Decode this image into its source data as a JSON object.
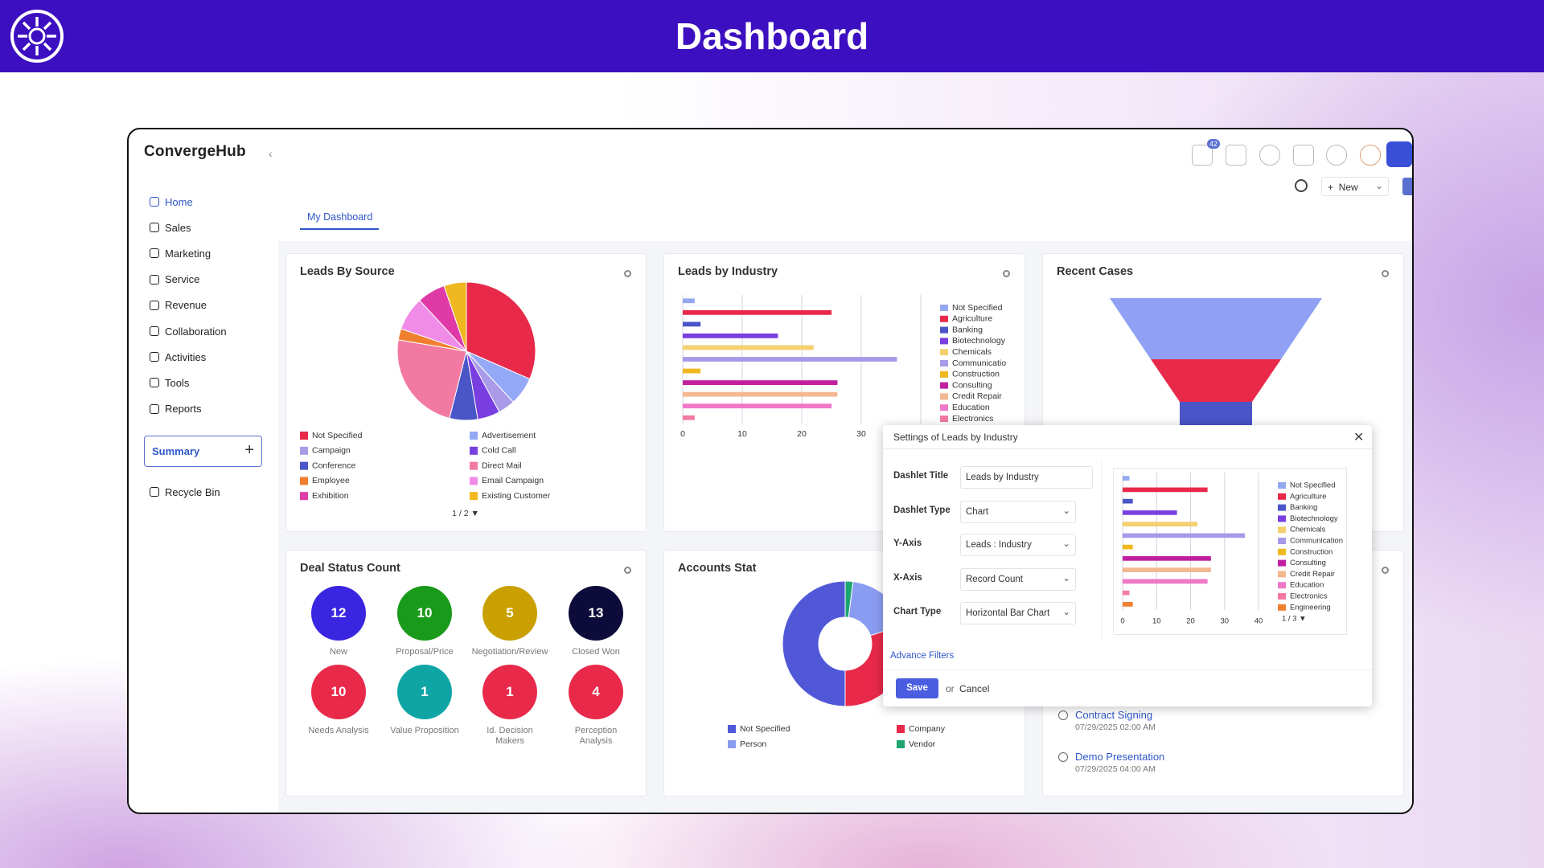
{
  "header": {
    "title": "Dashboard"
  },
  "app": {
    "brand": "ConvergeHub",
    "notification_count": 42,
    "new_button": "New"
  },
  "nav": {
    "items": [
      "Home",
      "Sales",
      "Marketing",
      "Service",
      "Revenue",
      "Collaboration",
      "Activities",
      "Tools",
      "Reports"
    ],
    "summary": "Summary",
    "recycle_bin": "Recycle Bin"
  },
  "tabs": [
    "My Dashboard"
  ],
  "chart_data": [
    {
      "type": "pie",
      "title": "Leads By Source",
      "categories": [
        "Not Specified",
        "Advertisement",
        "Campaign",
        "Cold Call",
        "Conference",
        "Direct Mail",
        "Employee",
        "Email Campaign",
        "Exhibition",
        "Existing Customer"
      ],
      "values": [
        24,
        5,
        3,
        4,
        5,
        18,
        2,
        6,
        5,
        4
      ],
      "colors": [
        "#e8294a",
        "#93a9f7",
        "#a99be8",
        "#7a3fe0",
        "#4a55c8",
        "#f27aa2",
        "#f08030",
        "#f08ce8",
        "#e03aa8",
        "#f0b820"
      ],
      "pagination": "1 / 2 ▼"
    },
    {
      "type": "bar",
      "orientation": "horizontal",
      "title": "Leads by Industry",
      "categories": [
        "Not Specified",
        "Agriculture",
        "Banking",
        "Biotechnology",
        "Chemicals",
        "Communicatio",
        "Construction",
        "Consulting",
        "Credit Repair",
        "Education",
        "Electronics"
      ],
      "values": [
        2,
        25,
        3,
        16,
        22,
        36,
        3,
        26,
        26,
        25,
        2
      ],
      "colors": [
        "#94a8f0",
        "#e8294a",
        "#4a55c8",
        "#7a3fe0",
        "#f5d070",
        "#a899e8",
        "#f0b820",
        "#c020a0",
        "#f4b890",
        "#f078c8",
        "#f27aa2"
      ],
      "xlim": [
        0,
        40
      ],
      "xticks": [
        0,
        10,
        20,
        30
      ],
      "grid": true
    },
    {
      "type": "funnel",
      "title": "Recent Cases",
      "categories": [
        null,
        null,
        null
      ],
      "values": [
        44,
        27,
        15
      ],
      "colors": [
        "#8fa0f5",
        "#e8294a",
        "#4a55c8"
      ]
    },
    {
      "type": "donut",
      "title": "Accounts Stat",
      "categories": [
        "Not Specified",
        "Company",
        "Person",
        "Vendor"
      ],
      "values": [
        50,
        30,
        18,
        2
      ],
      "colors": [
        "#5058d8",
        "#e8294a",
        "#8a9cf2",
        "#1ea672"
      ]
    },
    {
      "type": "bar",
      "orientation": "horizontal",
      "categories": [
        "Not Specified",
        "Agriculture",
        "Banking",
        "Biotechnology",
        "Chemicals",
        "Communication",
        "Construction",
        "Consulting",
        "Credit Repair",
        "Education",
        "Electronics",
        "Engineering"
      ],
      "values": [
        2,
        25,
        3,
        16,
        22,
        36,
        3,
        26,
        26,
        25,
        2,
        3
      ],
      "colors": [
        "#94a8f0",
        "#e8294a",
        "#4a55c8",
        "#7a3fe0",
        "#f5d070",
        "#a899e8",
        "#f0b820",
        "#c020a0",
        "#f4b890",
        "#f078c8",
        "#f27aa2",
        "#f08030"
      ],
      "xlim": [
        0,
        40
      ],
      "xticks": [
        0,
        10,
        20,
        30,
        40
      ],
      "grid": true,
      "pagination": "1 / 3 ▼"
    }
  ],
  "deal_status": {
    "title": "Deal Status Count",
    "items": [
      {
        "label": "New",
        "count": 12,
        "color": "#3a25e0"
      },
      {
        "label": "Proposal/Price",
        "count": 10,
        "color": "#1a9a1a"
      },
      {
        "label": "Negotiation/Review",
        "count": 5,
        "color": "#c9a000"
      },
      {
        "label": "Closed Won",
        "count": 13,
        "color": "#0d0b3a"
      },
      {
        "label": "Needs Analysis",
        "count": 10,
        "color": "#e8294a"
      },
      {
        "label": "Value Proposition",
        "count": 1,
        "color": "#0fa5a5"
      },
      {
        "label": "Id. Decision Makers",
        "count": 1,
        "color": "#e8294a"
      },
      {
        "label": "Perception Analysis",
        "count": 4,
        "color": "#e8294a"
      }
    ]
  },
  "activities": [
    {
      "title": "Contract Signing",
      "time": "07/29/2025 02:00 AM"
    },
    {
      "title": "Demo Presentation",
      "time": "07/29/2025 04:00 AM"
    }
  ],
  "modal": {
    "title": "Settings of Leads by Industry",
    "fields": [
      {
        "label": "Dashlet Title",
        "value": "Leads by Industry"
      },
      {
        "label": "Dashlet Type",
        "value": "Chart"
      },
      {
        "label": "Y-Axis",
        "value": "Leads : Industry"
      },
      {
        "label": "X-Axis",
        "value": "Record Count"
      },
      {
        "label": "Chart Type",
        "value": "Horizontal Bar Chart"
      }
    ],
    "advance_filters": "Advance Filters",
    "save": "Save",
    "or": "or",
    "cancel": "Cancel"
  }
}
